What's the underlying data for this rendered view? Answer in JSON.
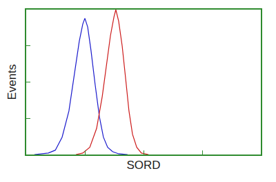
{
  "chart_data": {
    "type": "line",
    "x_label": "SORD",
    "y_label": "Events",
    "xlim": [
      0,
      100
    ],
    "ylim": [
      0,
      100
    ],
    "xticks": [
      0,
      25,
      50,
      75,
      100
    ],
    "yticks": [
      0,
      25,
      50,
      75,
      100
    ],
    "tick_labels": false,
    "grid": false,
    "series": [
      {
        "color": "#1a1acc",
        "x": [
          3.5,
          6.5,
          9.4,
          12.4,
          15.3,
          18.2,
          20.6,
          22.6,
          24.1,
          25,
          26.2,
          27.6,
          29.4,
          31.2,
          32.9,
          34.7,
          36.8,
          39.4,
          43.2
        ],
        "values": [
          0,
          0.5,
          1,
          3,
          12,
          30,
          55,
          78,
          90,
          94,
          88,
          72,
          48,
          26,
          12,
          5,
          2,
          0.5,
          0
        ]
      },
      {
        "color": "#cc1a1a",
        "x": [
          21.2,
          24.1,
          27.1,
          30,
          32.4,
          34.4,
          35.9,
          37.4,
          38.2,
          39.4,
          40.9,
          42.4,
          43.8,
          45.3,
          47.1,
          49.1,
          52.1
        ],
        "values": [
          0,
          1,
          5,
          18,
          40,
          65,
          82,
          95,
          100,
          92,
          75,
          52,
          30,
          14,
          5,
          1,
          0
        ]
      }
    ]
  }
}
